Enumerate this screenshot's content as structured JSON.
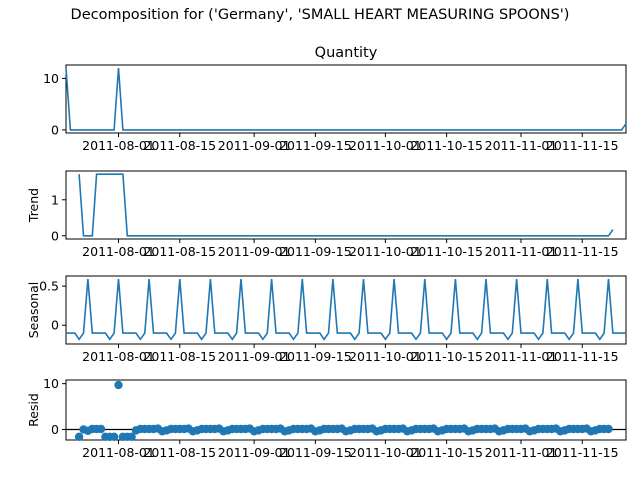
{
  "title": "Decomposition for ('Germany', 'SMALL HEART MEASURING SPOONS')",
  "colors": {
    "line": "#1f77b4",
    "axis": "#000000",
    "background": "#ffffff"
  },
  "chart_data": {
    "type": "line",
    "x_tick_labels": [
      "2011-08-01",
      "2011-08-15",
      "2011-09-01",
      "2011-09-15",
      "2011-10-01",
      "2011-10-15",
      "2011-11-01",
      "2011-11-15"
    ],
    "x_ticks": [
      "2011-08-01",
      "2011-08-15",
      "2011-09-01",
      "2011-09-15",
      "2011-10-01",
      "2011-10-15",
      "2011-11-01",
      "2011-11-15"
    ],
    "x_tick_display": [
      "2011-08-01",
      "2011-08-15",
      "2011-09-01",
      "2011-09-15",
      "2011-10-01",
      "2011-10-15",
      "2011-11-01",
      "2011-11-15"
    ],
    "x_range": [
      "2011-07-20",
      "2011-11-25"
    ],
    "period": 7,
    "panels": [
      {
        "ylabel": "",
        "title": "Quantity",
        "type": "line",
        "ylim": [
          -0.6,
          12.6
        ],
        "yticks": [
          0,
          10
        ],
        "series": [
          {
            "x": [
              "2011-07-20",
              "2011-07-21",
              "2011-07-31",
              "2011-08-01",
              "2011-08-02",
              "2011-11-24",
              "2011-11-25"
            ],
            "values": [
              12,
              0,
              0,
              12,
              0,
              0,
              1.2
            ]
          }
        ]
      },
      {
        "ylabel": "Trend",
        "type": "line",
        "ylim": [
          -0.09,
          1.8
        ],
        "yticks": [
          0,
          1
        ],
        "series": [
          {
            "x": [
              "2011-07-23",
              "2011-07-24",
              "2011-07-26",
              "2011-07-27",
              "2011-08-02",
              "2011-08-03",
              "2011-11-21",
              "2011-11-22"
            ],
            "values": [
              1.71,
              0,
              0,
              1.71,
              1.71,
              0,
              0,
              0.17
            ]
          }
        ]
      },
      {
        "ylabel": "Seasonal",
        "type": "line",
        "ylim": [
          -0.24,
          0.63
        ],
        "yticks": [
          0.0,
          0.5
        ],
        "seasonal_pattern": [
          0.59,
          -0.1,
          -0.1,
          -0.1,
          -0.1,
          -0.18,
          -0.1
        ],
        "seasonal_anchor": "2011-08-01"
      },
      {
        "ylabel": "Resid",
        "type": "scatter",
        "ylim": [
          -2.3,
          10.8
        ],
        "yticks": [
          0,
          10
        ],
        "hline": 0,
        "points": [
          {
            "x": "2011-07-23",
            "y": -1.6
          },
          {
            "x": "2011-07-24",
            "y": 0
          },
          {
            "x": "2011-07-25",
            "y": -0.3
          },
          {
            "x": "2011-07-26",
            "y": 0.1
          },
          {
            "x": "2011-07-27",
            "y": 0.1
          },
          {
            "x": "2011-07-28",
            "y": 0.1
          },
          {
            "x": "2011-07-29",
            "y": -1.6
          },
          {
            "x": "2011-07-30",
            "y": -1.6
          },
          {
            "x": "2011-07-31",
            "y": -1.6
          },
          {
            "x": "2011-08-01",
            "y": 9.7
          },
          {
            "x": "2011-08-02",
            "y": -1.6
          },
          {
            "x": "2011-08-03",
            "y": -1.6
          },
          {
            "x": "2011-08-04",
            "y": -1.6
          }
        ],
        "fill_pattern": [
          -0.2,
          0.1,
          0.1,
          0.1,
          0.1,
          0.2,
          -0.4
        ],
        "fill_range": [
          "2011-08-05",
          "2011-11-21"
        ]
      }
    ]
  }
}
